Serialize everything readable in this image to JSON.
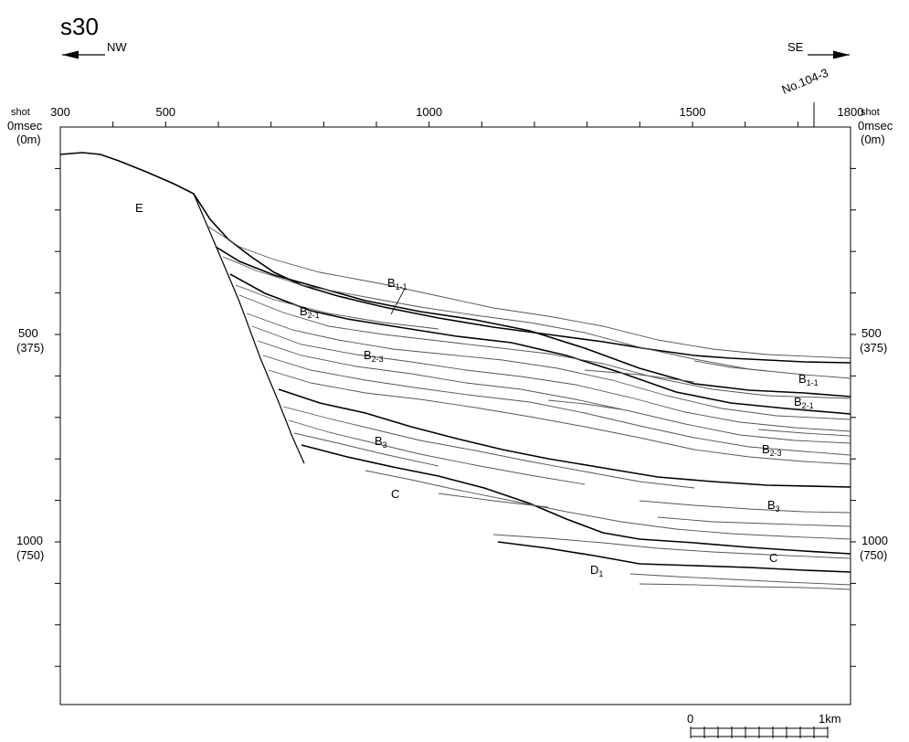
{
  "title": "s30",
  "direction_left": "NW",
  "direction_right": "SE",
  "station_label": "No.104-3",
  "shot_unit": "shot",
  "top_axis_ticks": [
    {
      "shot": 300,
      "label": "300"
    },
    {
      "shot": 500,
      "label": "500"
    },
    {
      "shot": 1000,
      "label": "1000"
    },
    {
      "shot": 1500,
      "label": "1500"
    },
    {
      "shot": 1800,
      "label": "1800"
    }
  ],
  "side_axis": {
    "zero_time": "0msec",
    "zero_depth": "(0m)",
    "ticks": [
      {
        "msec": 500,
        "time_label": "500",
        "depth_label": "(375)"
      },
      {
        "msec": 1000,
        "time_label": "1000",
        "depth_label": "(750)"
      }
    ]
  },
  "scale_bar": {
    "start_label": "0",
    "end_label": "1km"
  },
  "units": [
    {
      "id": "E",
      "main": "E",
      "sub": ""
    },
    {
      "id": "B1-1-left",
      "main": "B",
      "sub": "1-1"
    },
    {
      "id": "B2-1-left",
      "main": "B",
      "sub": "2-1"
    },
    {
      "id": "B2-3-left",
      "main": "B",
      "sub": "2-3"
    },
    {
      "id": "B3-left",
      "main": "B",
      "sub": "3"
    },
    {
      "id": "C-left",
      "main": "C",
      "sub": ""
    },
    {
      "id": "B1-1-right",
      "main": "B",
      "sub": "1-1"
    },
    {
      "id": "B2-1-right",
      "main": "B",
      "sub": "2-1"
    },
    {
      "id": "B2-3-right",
      "main": "B",
      "sub": "2-3"
    },
    {
      "id": "B3-right",
      "main": "B",
      "sub": "3"
    },
    {
      "id": "C-right",
      "main": "C",
      "sub": ""
    },
    {
      "id": "D1",
      "main": "D",
      "sub": "1"
    }
  ],
  "colors": {
    "ink": "#000000",
    "background": "#ffffff",
    "thin_line": "#555555"
  }
}
